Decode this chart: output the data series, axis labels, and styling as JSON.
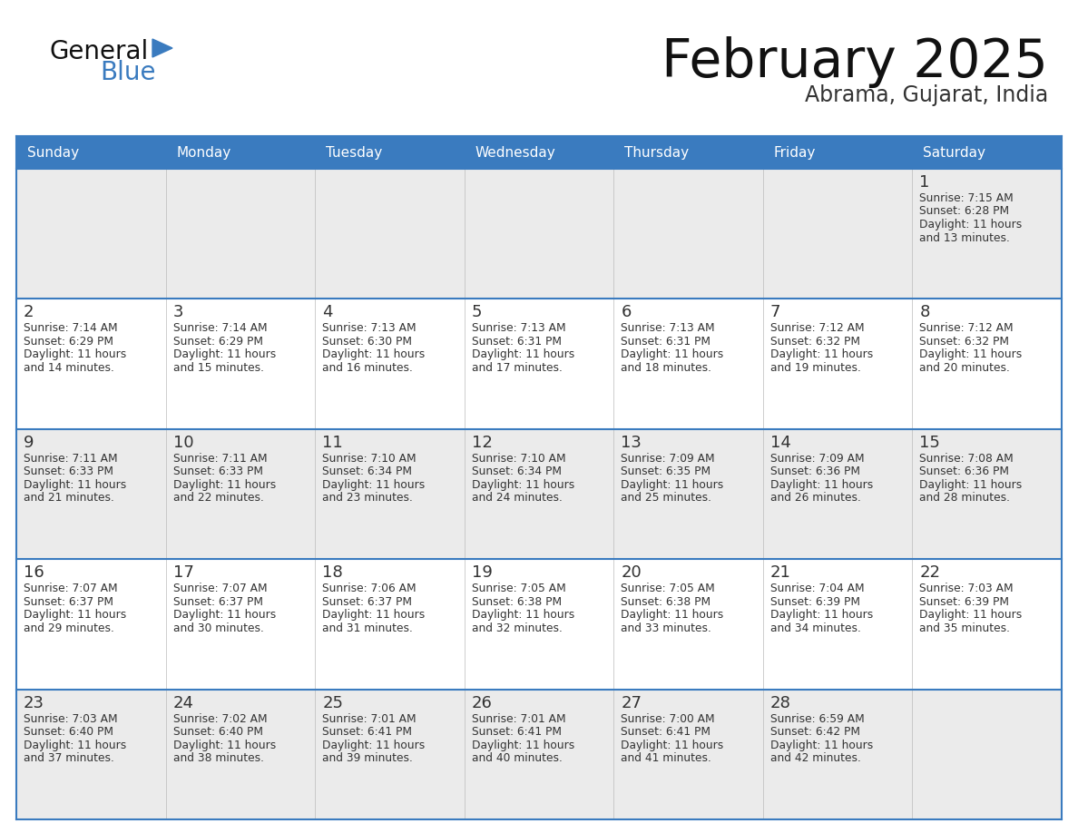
{
  "title": "February 2025",
  "subtitle": "Abrama, Gujarat, India",
  "header_color": "#3a7bbf",
  "header_text_color": "#ffffff",
  "day_names": [
    "Sunday",
    "Monday",
    "Tuesday",
    "Wednesday",
    "Thursday",
    "Friday",
    "Saturday"
  ],
  "bg_color": "#ffffff",
  "cell_bg_light": "#ebebeb",
  "cell_bg_white": "#ffffff",
  "border_color": "#3a7bbf",
  "text_color": "#333333",
  "day_num_color": "#333333",
  "calendar": [
    [
      null,
      null,
      null,
      null,
      null,
      null,
      {
        "day": 1,
        "sunrise": "7:15 AM",
        "sunset": "6:28 PM",
        "daylight": "11 hours and 13 minutes."
      }
    ],
    [
      {
        "day": 2,
        "sunrise": "7:14 AM",
        "sunset": "6:29 PM",
        "daylight": "11 hours and 14 minutes."
      },
      {
        "day": 3,
        "sunrise": "7:14 AM",
        "sunset": "6:29 PM",
        "daylight": "11 hours and 15 minutes."
      },
      {
        "day": 4,
        "sunrise": "7:13 AM",
        "sunset": "6:30 PM",
        "daylight": "11 hours and 16 minutes."
      },
      {
        "day": 5,
        "sunrise": "7:13 AM",
        "sunset": "6:31 PM",
        "daylight": "11 hours and 17 minutes."
      },
      {
        "day": 6,
        "sunrise": "7:13 AM",
        "sunset": "6:31 PM",
        "daylight": "11 hours and 18 minutes."
      },
      {
        "day": 7,
        "sunrise": "7:12 AM",
        "sunset": "6:32 PM",
        "daylight": "11 hours and 19 minutes."
      },
      {
        "day": 8,
        "sunrise": "7:12 AM",
        "sunset": "6:32 PM",
        "daylight": "11 hours and 20 minutes."
      }
    ],
    [
      {
        "day": 9,
        "sunrise": "7:11 AM",
        "sunset": "6:33 PM",
        "daylight": "11 hours and 21 minutes."
      },
      {
        "day": 10,
        "sunrise": "7:11 AM",
        "sunset": "6:33 PM",
        "daylight": "11 hours and 22 minutes."
      },
      {
        "day": 11,
        "sunrise": "7:10 AM",
        "sunset": "6:34 PM",
        "daylight": "11 hours and 23 minutes."
      },
      {
        "day": 12,
        "sunrise": "7:10 AM",
        "sunset": "6:34 PM",
        "daylight": "11 hours and 24 minutes."
      },
      {
        "day": 13,
        "sunrise": "7:09 AM",
        "sunset": "6:35 PM",
        "daylight": "11 hours and 25 minutes."
      },
      {
        "day": 14,
        "sunrise": "7:09 AM",
        "sunset": "6:36 PM",
        "daylight": "11 hours and 26 minutes."
      },
      {
        "day": 15,
        "sunrise": "7:08 AM",
        "sunset": "6:36 PM",
        "daylight": "11 hours and 28 minutes."
      }
    ],
    [
      {
        "day": 16,
        "sunrise": "7:07 AM",
        "sunset": "6:37 PM",
        "daylight": "11 hours and 29 minutes."
      },
      {
        "day": 17,
        "sunrise": "7:07 AM",
        "sunset": "6:37 PM",
        "daylight": "11 hours and 30 minutes."
      },
      {
        "day": 18,
        "sunrise": "7:06 AM",
        "sunset": "6:37 PM",
        "daylight": "11 hours and 31 minutes."
      },
      {
        "day": 19,
        "sunrise": "7:05 AM",
        "sunset": "6:38 PM",
        "daylight": "11 hours and 32 minutes."
      },
      {
        "day": 20,
        "sunrise": "7:05 AM",
        "sunset": "6:38 PM",
        "daylight": "11 hours and 33 minutes."
      },
      {
        "day": 21,
        "sunrise": "7:04 AM",
        "sunset": "6:39 PM",
        "daylight": "11 hours and 34 minutes."
      },
      {
        "day": 22,
        "sunrise": "7:03 AM",
        "sunset": "6:39 PM",
        "daylight": "11 hours and 35 minutes."
      }
    ],
    [
      {
        "day": 23,
        "sunrise": "7:03 AM",
        "sunset": "6:40 PM",
        "daylight": "11 hours and 37 minutes."
      },
      {
        "day": 24,
        "sunrise": "7:02 AM",
        "sunset": "6:40 PM",
        "daylight": "11 hours and 38 minutes."
      },
      {
        "day": 25,
        "sunrise": "7:01 AM",
        "sunset": "6:41 PM",
        "daylight": "11 hours and 39 minutes."
      },
      {
        "day": 26,
        "sunrise": "7:01 AM",
        "sunset": "6:41 PM",
        "daylight": "11 hours and 40 minutes."
      },
      {
        "day": 27,
        "sunrise": "7:00 AM",
        "sunset": "6:41 PM",
        "daylight": "11 hours and 41 minutes."
      },
      {
        "day": 28,
        "sunrise": "6:59 AM",
        "sunset": "6:42 PM",
        "daylight": "11 hours and 42 minutes."
      },
      null
    ]
  ],
  "row_bg": [
    "light",
    "white",
    "light",
    "white",
    "light"
  ]
}
